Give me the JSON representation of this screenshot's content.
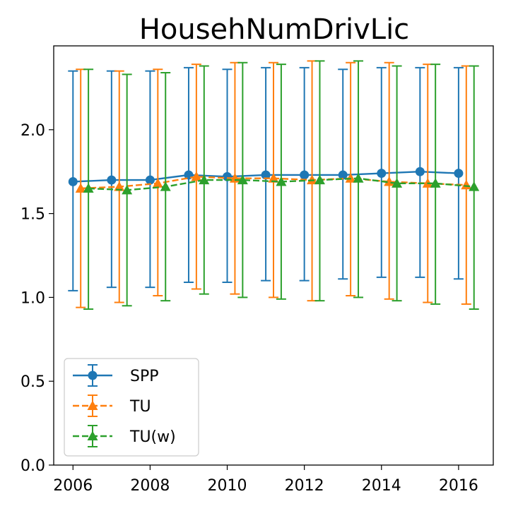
{
  "chart_data": {
    "type": "line",
    "title": "HousehNumDrivLic",
    "xlabel": "",
    "ylabel": "",
    "x": [
      2006,
      2007,
      2008,
      2009,
      2010,
      2011,
      2012,
      2013,
      2014,
      2015,
      2016
    ],
    "xlim": [
      2005.5,
      2016.9
    ],
    "ylim": [
      0.0,
      2.5
    ],
    "xticks": [
      2006,
      2008,
      2010,
      2012,
      2014,
      2016
    ],
    "yticks": [
      0.0,
      0.5,
      1.0,
      1.5,
      2.0
    ],
    "ytick_labels": [
      "0.0",
      "0.5",
      "1.0",
      "1.5",
      "2.0"
    ],
    "grid": false,
    "legend_position": "lower-left",
    "series": [
      {
        "name": "SPP",
        "color": "#1f77b4",
        "marker": "circle",
        "linestyle": "solid",
        "x_offset": 0.0,
        "values": [
          1.69,
          1.7,
          1.7,
          1.73,
          1.72,
          1.73,
          1.73,
          1.73,
          1.74,
          1.75,
          1.74
        ],
        "error_low": [
          1.04,
          1.06,
          1.06,
          1.09,
          1.09,
          1.1,
          1.1,
          1.11,
          1.12,
          1.12,
          1.11
        ],
        "error_high": [
          2.35,
          2.35,
          2.35,
          2.37,
          2.36,
          2.37,
          2.37,
          2.36,
          2.37,
          2.37,
          2.37
        ]
      },
      {
        "name": "TU",
        "color": "#ff7f0e",
        "marker": "triangle",
        "linestyle": "dashed",
        "x_offset": 0.2,
        "values": [
          1.65,
          1.66,
          1.68,
          1.72,
          1.71,
          1.71,
          1.7,
          1.71,
          1.69,
          1.68,
          1.67
        ],
        "error_low": [
          0.94,
          0.97,
          1.01,
          1.05,
          1.02,
          1.0,
          0.98,
          1.01,
          0.99,
          0.97,
          0.96
        ],
        "error_high": [
          2.36,
          2.35,
          2.36,
          2.39,
          2.4,
          2.4,
          2.41,
          2.4,
          2.4,
          2.39,
          2.38
        ]
      },
      {
        "name": "TU(w)",
        "color": "#2ca02c",
        "marker": "triangle",
        "linestyle": "dashed",
        "x_offset": 0.4,
        "values": [
          1.65,
          1.64,
          1.66,
          1.7,
          1.7,
          1.69,
          1.7,
          1.71,
          1.68,
          1.68,
          1.66
        ],
        "error_low": [
          0.93,
          0.95,
          0.98,
          1.02,
          1.0,
          0.99,
          0.98,
          1.0,
          0.98,
          0.96,
          0.93
        ],
        "error_high": [
          2.36,
          2.33,
          2.34,
          2.38,
          2.4,
          2.39,
          2.41,
          2.41,
          2.38,
          2.39,
          2.38
        ]
      }
    ]
  }
}
